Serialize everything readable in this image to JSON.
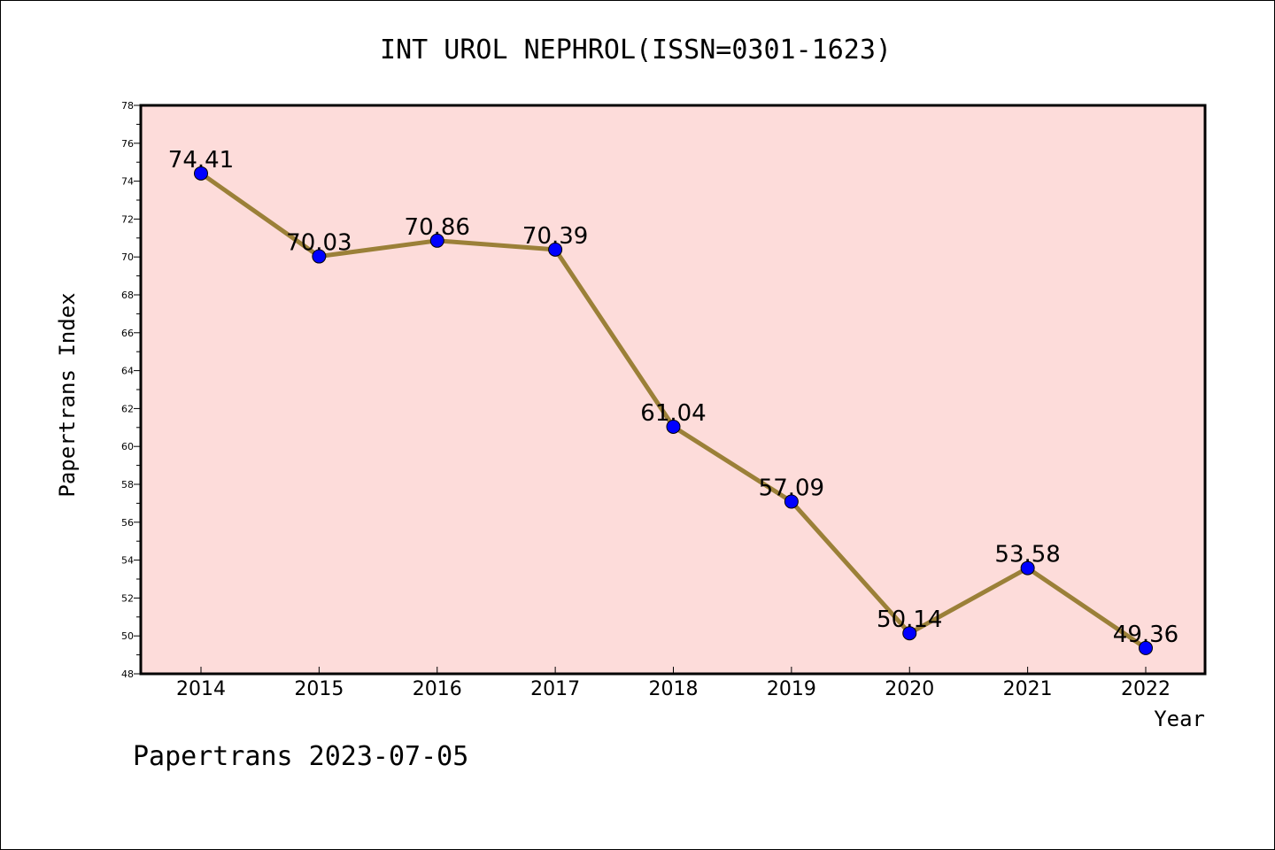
{
  "footer": "Papertrans 2023-07-05",
  "colors": {
    "plot_background": "#fddcda",
    "line": "#9b8038",
    "marker": "#0000ff",
    "axis": "#000000"
  },
  "chart_data": {
    "type": "line",
    "title": "INT UROL NEPHROL(ISSN=0301-1623)",
    "xlabel": "Year",
    "ylabel": "Papertrans Index",
    "categories": [
      "2014",
      "2015",
      "2016",
      "2017",
      "2018",
      "2019",
      "2020",
      "2021",
      "2022"
    ],
    "series": [
      {
        "values": [
          74.41,
          70.03,
          70.86,
          70.39,
          61.04,
          57.09,
          50.14,
          53.58,
          49.36
        ],
        "labels": [
          "74.41",
          "70.03",
          "70.86",
          "70.39",
          "61.04",
          "57.09",
          "50.14",
          "53.58",
          "49.36"
        ]
      }
    ],
    "ylim": [
      48,
      78
    ],
    "yticks": [
      "48",
      "50",
      "52",
      "54",
      "56",
      "58",
      "60",
      "62",
      "64",
      "66",
      "68",
      "70",
      "72",
      "74",
      "76",
      "78"
    ],
    "grid": false,
    "legend": "none",
    "marker": "circle"
  }
}
